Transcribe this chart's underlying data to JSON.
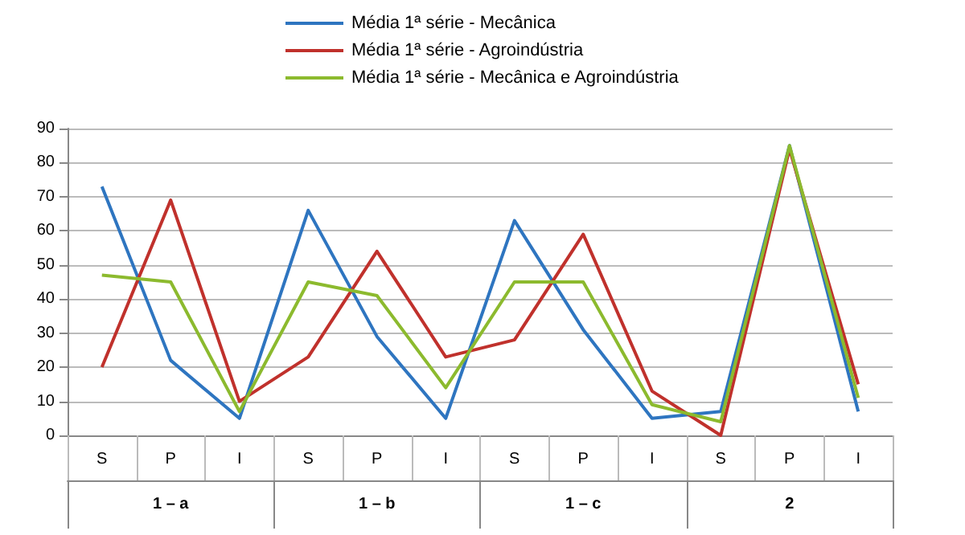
{
  "chart_data": {
    "type": "line",
    "categories": [
      "S",
      "P",
      "I",
      "S",
      "P",
      "I",
      "S",
      "P",
      "I",
      "S",
      "P",
      "I"
    ],
    "annotations": [
      "1 – a",
      "1 – b",
      "1 – c",
      "2"
    ],
    "series": [
      {
        "name": "Média 1ª série - Mecânica",
        "color": "#2e75c0",
        "values": [
          73,
          22,
          5,
          66,
          29,
          5,
          63,
          31,
          5,
          7,
          85,
          7
        ]
      },
      {
        "name": "Média 1ª série - Agroindústria",
        "color": "#c0312c",
        "values": [
          20,
          69,
          10,
          23,
          54,
          23,
          28,
          59,
          13,
          0,
          84,
          15
        ]
      },
      {
        "name": "Média 1ª série - Mecânica e Agroindústria",
        "color": "#8cba2e",
        "values": [
          47,
          45,
          7,
          45,
          41,
          14,
          45,
          45,
          9,
          4,
          85,
          11
        ]
      }
    ],
    "ylim": [
      0,
      90
    ],
    "yticks": [
      0,
      10,
      20,
      30,
      40,
      50,
      60,
      70,
      80,
      90
    ],
    "grid": "y",
    "legend": "top",
    "marker": "none",
    "line_style": "solid"
  }
}
